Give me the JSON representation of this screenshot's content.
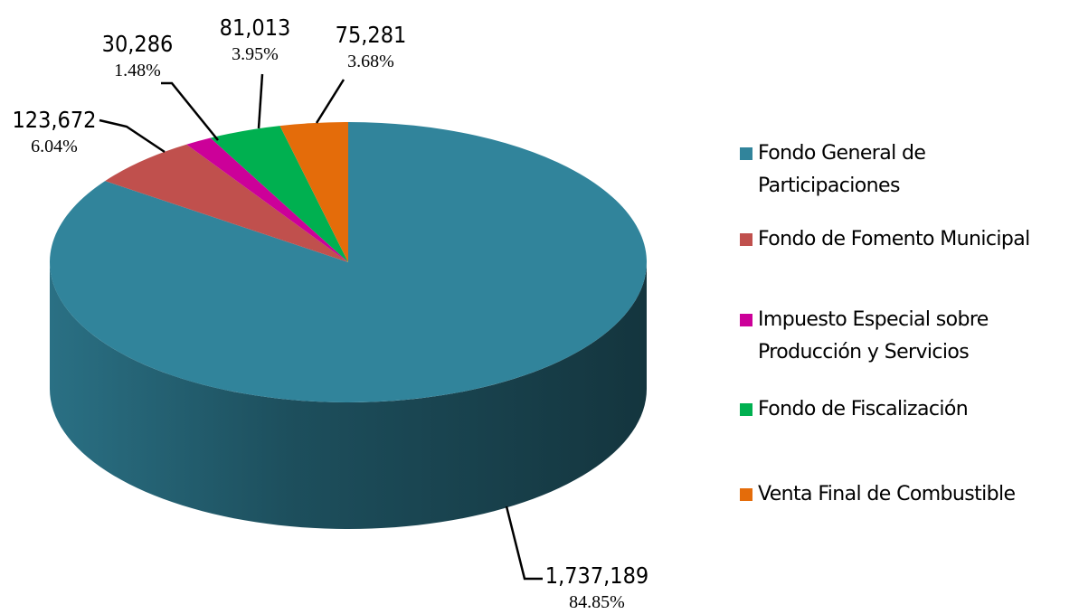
{
  "chart_data": {
    "type": "pie",
    "categories": [
      "Fondo General de Participaciones",
      "Fondo de Fomento Municipal",
      "Impuesto Especial sobre Producción y Servicios",
      "Fondo de Fiscalización",
      "Venta Final de Combustible"
    ],
    "values": [
      1737189,
      123672,
      30286,
      81013,
      75281
    ],
    "value_labels": [
      "1,737,189",
      "123,672",
      "30,286",
      "81,013",
      "75,281"
    ],
    "percent_labels": [
      "84.85%",
      "6.04%",
      "1.48%",
      "3.95%",
      "3.68%"
    ],
    "colors": [
      "#31849b",
      "#c0504d",
      "#cc0099",
      "#00b050",
      "#e46c0a"
    ],
    "legend": "right"
  }
}
